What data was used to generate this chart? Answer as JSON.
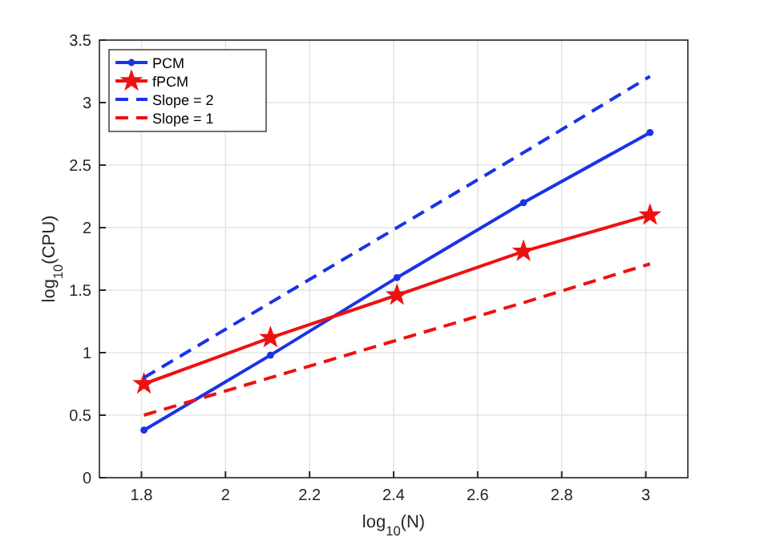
{
  "chart_data": {
    "type": "line",
    "xlabel": "log$_{10}$(N)",
    "ylabel": "log$_{10}$(CPU)",
    "xlim": [
      1.7,
      3.1
    ],
    "xticks": [
      1.8,
      2,
      2.2,
      2.4,
      2.6,
      2.8,
      3
    ],
    "ylim": [
      0,
      3.5
    ],
    "yticks": [
      0,
      0.5,
      1,
      1.5,
      2,
      2.5,
      3,
      3.5
    ],
    "grid": true,
    "legend": "top left",
    "x": [
      1.806,
      2.107,
      2.408,
      2.709,
      3.01
    ],
    "series": [
      {
        "name": "PCM",
        "color": "#1a33e6",
        "values": [
          0.38,
          0.98,
          1.6,
          2.2,
          2.76
        ],
        "marker": "circle",
        "line_style": "solid"
      },
      {
        "name": "fPCM",
        "color": "#ee1111",
        "values": [
          0.75,
          1.12,
          1.46,
          1.81,
          2.1
        ],
        "marker": "star",
        "line_style": "solid"
      },
      {
        "name": "Slope = 2",
        "color": "#1a33e6",
        "values": [
          0.8,
          1.4,
          2.0,
          2.6,
          3.21
        ],
        "marker": "none",
        "line_style": "dashed"
      },
      {
        "name": "Slope = 1",
        "color": "#ee1111",
        "values": [
          0.5,
          0.8,
          1.1,
          1.4,
          1.71
        ],
        "marker": "none",
        "line_style": "dashed"
      }
    ]
  }
}
